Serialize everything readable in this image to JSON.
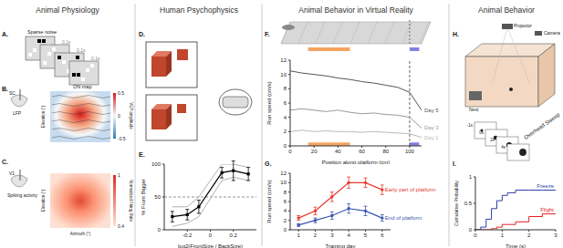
{
  "sections": [
    "Animal Physiology",
    "Human Psychophysics",
    "Animal Behavior in Virtual Reality",
    "Animal Behavior"
  ],
  "panel_labels": [
    "A.",
    "B.",
    "C.",
    "D.",
    "E.",
    "F.",
    "G.",
    "H.",
    "I."
  ],
  "panel_a": {
    "title": "Sparse noise",
    "frame_labels": [
      "0.1s",
      "0.1s",
      "0.1s",
      "0.1s"
    ]
  },
  "panel_b": {
    "area": "SC",
    "recording": "LFP",
    "map_title": "ON map",
    "y_label": "Elevation (°)",
    "colorbar_label": "VEP amplitude",
    "colorbar_ticks": [
      0.5,
      0,
      -0.5
    ]
  },
  "panel_c": {
    "area": "V1",
    "recording": "Spiking activity",
    "y_label": "Elevation (°)",
    "x_label": "Azimuth (°)",
    "colorbar_label": "Normalized Firing Rate",
    "colorbar_ticks": [
      1,
      0.4
    ]
  },
  "panel_h": {
    "projector": "Projector",
    "camera": "Camera",
    "nest": "Nest",
    "sweep": "Overhead Sweep",
    "frame_labels": [
      "-1s",
      "0s",
      "2s",
      "4s"
    ]
  },
  "chart_data": [
    {
      "type": "line",
      "x_label": "log2(FrontSize / BackSize)",
      "y_label": "% Front Bigger",
      "x": [
        -0.33,
        -0.2,
        -0.1,
        0.1,
        0.2,
        0.33
      ],
      "series": [
        {
          "color": "#000000",
          "marker": "square",
          "values": [
            20,
            23,
            35,
            87,
            90,
            85
          ],
          "errors": [
            8,
            8,
            10,
            8,
            15,
            10
          ]
        },
        {
          "color": "#b0b0b0",
          "values": [
            5,
            10,
            20,
            75,
            80,
            75
          ]
        },
        {
          "color": "#b0b0b0",
          "values": [
            35,
            35,
            50,
            100,
            100,
            95
          ]
        }
      ],
      "xlim": [
        -0.4,
        0.4
      ],
      "xticks": [
        -0.2,
        0,
        0.2
      ],
      "ylim": [
        0,
        100
      ],
      "yticks": [
        0,
        50,
        100
      ],
      "reference_y": 50
    },
    {
      "type": "line",
      "x_label": "Position along platform (cm)",
      "y_label": "Run speed (cm/s)",
      "x": [
        0,
        10,
        20,
        30,
        40,
        50,
        60,
        70,
        80,
        90,
        100,
        110
      ],
      "series": [
        {
          "name": "Day 5",
          "color": "#555555",
          "values": [
            10.5,
            10.2,
            10,
            9.8,
            9.5,
            9.3,
            9,
            8.8,
            8.5,
            8.2,
            7.5,
            5
          ]
        },
        {
          "name": "Day 3",
          "color": "#999999",
          "values": [
            5,
            5.2,
            5,
            4.8,
            5,
            4.7,
            4.5,
            4.6,
            4.4,
            4.3,
            4,
            2.5
          ]
        },
        {
          "name": "Day 1",
          "color": "#bbbbbb",
          "values": [
            2,
            2.2,
            2,
            2.1,
            2,
            2,
            1.9,
            2,
            1.9,
            1.8,
            1.7,
            1.2
          ]
        }
      ],
      "xlim": [
        0,
        110
      ],
      "xticks": [
        0,
        20,
        40,
        60,
        80,
        100
      ],
      "ylim": [
        0,
        12
      ],
      "yticks": [
        0,
        2,
        4,
        6,
        8,
        10,
        12
      ],
      "regions": [
        {
          "x": [
            15,
            50
          ],
          "color": "#f4a460"
        },
        {
          "x": [
            100,
            108
          ],
          "color": "#8080e0"
        }
      ],
      "boundary_x": 100
    },
    {
      "type": "line",
      "x_label": "Training day",
      "y_label": "Run speed (cm/s)",
      "x": [
        1,
        2,
        3,
        4,
        5,
        6
      ],
      "series": [
        {
          "name": "Early part of platform",
          "color": "#e8382f",
          "marker": "circle",
          "values": [
            2.5,
            4,
            7,
            10,
            10,
            8.5
          ],
          "errors": [
            0.5,
            0.8,
            1,
            1.2,
            1,
            1
          ]
        },
        {
          "name": "End of platform",
          "color": "#3a56b0",
          "marker": "circle",
          "values": [
            1,
            2,
            3,
            4.5,
            4,
            2.5
          ],
          "errors": [
            0.3,
            0.5,
            0.8,
            1,
            1,
            0.7
          ]
        }
      ],
      "xlim": [
        0.5,
        6.5
      ],
      "xticks": [
        1,
        2,
        3,
        4,
        5,
        6
      ],
      "ylim": [
        0,
        12
      ],
      "yticks": [
        0,
        2,
        4,
        6,
        8,
        10,
        12
      ]
    },
    {
      "type": "line",
      "line_style": "step",
      "x_label": "Time (s)",
      "y_label": "Cumulative Probability",
      "x": [
        0,
        0.2,
        0.4,
        0.6,
        0.8,
        1,
        1.2,
        1.5,
        2,
        2.5,
        3
      ],
      "series": [
        {
          "name": "Freeze",
          "color": "#2b3fa8",
          "values": [
            0,
            0.05,
            0.2,
            0.4,
            0.55,
            0.65,
            0.7,
            0.75,
            0.75,
            0.75,
            0.75
          ]
        },
        {
          "name": "Flight",
          "color": "#e02020",
          "values": [
            0,
            0,
            0,
            0.02,
            0.05,
            0.1,
            0.1,
            0.15,
            0.25,
            0.3,
            0.3
          ]
        }
      ],
      "xlim": [
        0,
        3
      ],
      "xticks": [
        0,
        1,
        2,
        3
      ],
      "ylim": [
        0,
        1
      ],
      "yticks": [
        0,
        0.5,
        1
      ]
    }
  ]
}
